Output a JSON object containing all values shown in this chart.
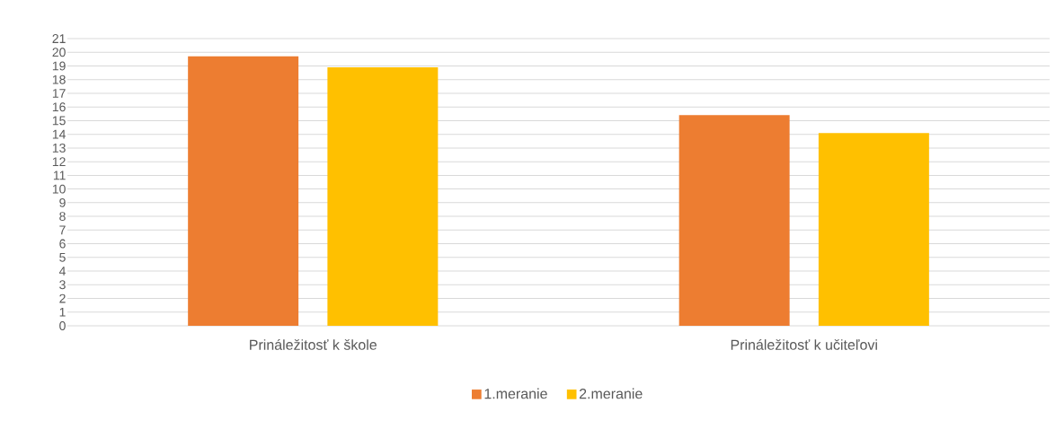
{
  "chart_data": {
    "type": "bar",
    "categories": [
      "Prináležitosť k škole",
      "Prináležitosť k učiteľovi"
    ],
    "series": [
      {
        "name": "1.meranie",
        "color": "#ed7d31",
        "values": [
          19.7,
          15.4
        ]
      },
      {
        "name": "2.meranie",
        "color": "#ffc000",
        "values": [
          18.9,
          14.1
        ]
      }
    ],
    "ylim": [
      0,
      21
    ],
    "yticks": [
      0,
      1,
      2,
      3,
      4,
      5,
      6,
      7,
      8,
      9,
      10,
      11,
      12,
      13,
      14,
      15,
      16,
      17,
      18,
      19,
      20,
      21
    ],
    "grid": "y",
    "legend": "bottom"
  }
}
